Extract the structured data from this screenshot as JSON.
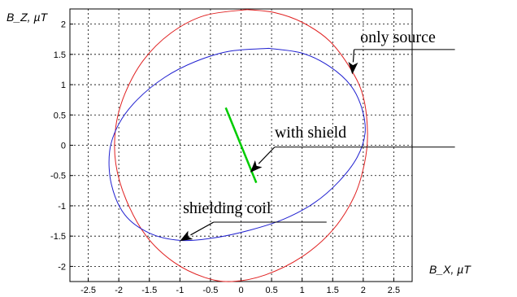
{
  "chart_data": {
    "type": "line",
    "title": "",
    "xlabel": "B_X, µT",
    "ylabel": "B_Z, µT",
    "xlim": [
      -2.8,
      2.8
    ],
    "ylim": [
      -2.25,
      2.25
    ],
    "xticks": [
      "-2.5",
      "-2",
      "-1.5",
      "-1",
      "-0.5",
      "0",
      "0.5",
      "1",
      "1.5",
      "2",
      "2.5"
    ],
    "yticks": [
      "2",
      "1.5",
      "1",
      "0.5",
      "0",
      "-0.5",
      "-1",
      "-1.5",
      "-2"
    ],
    "grid": true,
    "series": [
      {
        "color": "#e02020",
        "points": [
          [
            0.1,
            2.24
          ],
          [
            0.55,
            2.19
          ],
          [
            1.0,
            2.03
          ],
          [
            1.45,
            1.72
          ],
          [
            1.8,
            1.25
          ],
          [
            2.0,
            0.8
          ],
          [
            2.07,
            0.2
          ],
          [
            2.02,
            -0.3
          ],
          [
            1.85,
            -0.85
          ],
          [
            1.5,
            -1.4
          ],
          [
            1.0,
            -1.84
          ],
          [
            0.4,
            -2.14
          ],
          [
            -0.15,
            -2.25
          ],
          [
            -0.6,
            -2.18
          ],
          [
            -1.1,
            -1.93
          ],
          [
            -1.55,
            -1.5
          ],
          [
            -1.88,
            -0.9
          ],
          [
            -2.05,
            -0.3
          ],
          [
            -2.05,
            0.3
          ],
          [
            -1.9,
            0.85
          ],
          [
            -1.6,
            1.4
          ],
          [
            -1.15,
            1.85
          ],
          [
            -0.6,
            2.14
          ],
          [
            0.1,
            2.24
          ]
        ]
      },
      {
        "color": "#2020d0",
        "points": [
          [
            0.45,
            1.6
          ],
          [
            1.0,
            1.52
          ],
          [
            1.45,
            1.3
          ],
          [
            1.8,
            0.98
          ],
          [
            1.98,
            0.6
          ],
          [
            2.03,
            0.2
          ],
          [
            1.9,
            -0.2
          ],
          [
            1.6,
            -0.6
          ],
          [
            1.2,
            -0.95
          ],
          [
            0.7,
            -1.22
          ],
          [
            0.15,
            -1.4
          ],
          [
            -0.45,
            -1.53
          ],
          [
            -1.0,
            -1.57
          ],
          [
            -1.5,
            -1.45
          ],
          [
            -1.9,
            -1.15
          ],
          [
            -2.12,
            -0.65
          ],
          [
            -2.15,
            -0.1
          ],
          [
            -2.0,
            0.35
          ],
          [
            -1.7,
            0.75
          ],
          [
            -1.25,
            1.12
          ],
          [
            -0.75,
            1.38
          ],
          [
            -0.2,
            1.55
          ],
          [
            0.45,
            1.6
          ]
        ]
      },
      {
        "color": "#00cc00",
        "points": [
          [
            -0.25,
            0.62
          ],
          [
            0.25,
            -0.62
          ]
        ]
      }
    ],
    "annotations": [
      {
        "text": "only source",
        "label_at": [
          1.95,
          1.7
        ],
        "arrow_to": [
          1.82,
          1.17
        ],
        "line_start": [
          1.85,
          1.58
        ],
        "line_end": [
          3.5,
          1.58
        ]
      },
      {
        "text": "with shield",
        "label_at": [
          0.55,
          0.13
        ],
        "arrow_to": [
          0.15,
          -0.45
        ],
        "line_start": [
          0.55,
          -0.03
        ],
        "line_end": [
          3.5,
          -0.03
        ]
      },
      {
        "text": "shielding coil",
        "label_at": [
          -0.95,
          -1.12
        ],
        "arrow_to": [
          -1.0,
          -1.58
        ],
        "line_start": [
          -0.45,
          -1.27
        ],
        "line_end": [
          1.4,
          -1.27
        ]
      }
    ]
  }
}
